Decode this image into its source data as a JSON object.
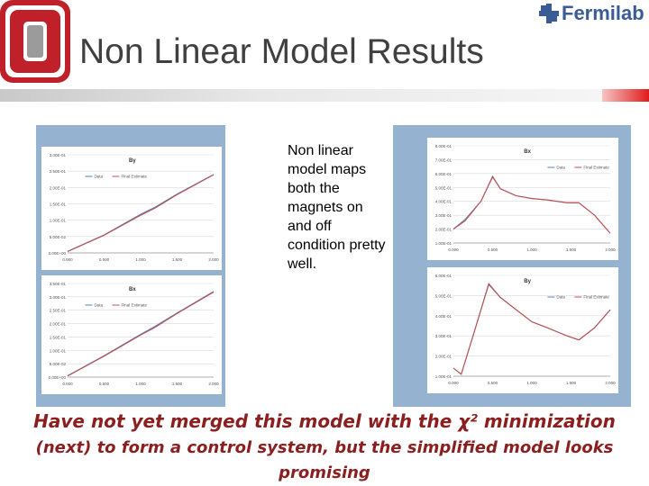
{
  "slide": {
    "title": "Non Linear Model Results",
    "brand": "Fermilab",
    "caption": "Non linear model maps both the magnets on and off condition pretty well.",
    "bottom_line1": "Have not yet merged this model with the χ² minimization",
    "bottom_line2": "(next) to form a control system, but the simplified model looks",
    "bottom_line3": "promising"
  },
  "colors": {
    "ohio_red": "#c0202a",
    "fermilab_blue": "#3a5b93",
    "panel_blue": "#95b2d0",
    "data_line": "#5b7fb8",
    "fit_line": "#c0504d",
    "accent_red": "#e11b1b",
    "bottom_text": "#8b1e1e"
  },
  "icons": {
    "logo": "ohio-state-block-o-icon",
    "brand": "fermilab-logo-icon"
  },
  "chart_data": [
    {
      "type": "line",
      "title": "By",
      "x_ticks": [
        "0.000",
        "0.500",
        "1.000",
        "1.500",
        "2.000"
      ],
      "y_ticks": [
        "0.00E+00",
        "5.00E-02",
        "1.00E-01",
        "1.50E-01",
        "2.00E-01",
        "2.50E-01",
        "3.00E-01"
      ],
      "ylim": [
        0,
        0.3
      ],
      "xlim": [
        0,
        2
      ],
      "legend_placement": "top-left",
      "series": [
        {
          "name": "Data",
          "x": [
            0,
            0.5,
            1.0,
            1.2,
            1.5,
            2.0
          ],
          "y": [
            0.005,
            0.055,
            0.118,
            0.14,
            0.18,
            0.24
          ]
        },
        {
          "name": "Final Estimate",
          "x": [
            0,
            0.5,
            1.0,
            1.2,
            1.5,
            2.0
          ],
          "y": [
            0.004,
            0.054,
            0.115,
            0.137,
            0.178,
            0.239
          ]
        }
      ]
    },
    {
      "type": "line",
      "title": "Bx",
      "x_ticks": [
        "0.000",
        "0.500",
        "1.000",
        "1.500",
        "2.000"
      ],
      "y_ticks": [
        "0.00E+00",
        "5.00E-02",
        "1.00E-01",
        "1.50E-01",
        "2.00E-01",
        "2.50E-01",
        "3.00E-01",
        "3.50E-01"
      ],
      "ylim": [
        0,
        0.35
      ],
      "xlim": [
        0,
        2
      ],
      "legend_placement": "top-left",
      "series": [
        {
          "name": "Data",
          "x": [
            0,
            0.5,
            1.0,
            1.2,
            1.5,
            2.0
          ],
          "y": [
            0.005,
            0.08,
            0.16,
            0.19,
            0.24,
            0.32
          ]
        },
        {
          "name": "Final Estimate",
          "x": [
            0,
            0.5,
            1.0,
            1.2,
            1.5,
            2.0
          ],
          "y": [
            0.004,
            0.078,
            0.157,
            0.186,
            0.238,
            0.318
          ]
        }
      ]
    },
    {
      "type": "line",
      "title": "Bx",
      "x_ticks": [
        "0.000",
        "0.500",
        "1.000",
        "1.500",
        "2.000"
      ],
      "y_ticks": [
        "1.00E-01",
        "2.00E-01",
        "3.00E-01",
        "4.00E-01",
        "5.00E-01",
        "6.00E-01",
        "7.00E-01",
        "8.00E-01"
      ],
      "ylim": [
        0.1,
        0.8
      ],
      "xlim": [
        0,
        2
      ],
      "legend_placement": "top-right",
      "series": [
        {
          "name": "Data",
          "x": [
            0,
            0.15,
            0.35,
            0.5,
            0.6,
            0.8,
            1.0,
            1.2,
            1.45,
            1.6,
            1.8,
            2.0
          ],
          "y": [
            0.2,
            0.27,
            0.4,
            0.58,
            0.49,
            0.44,
            0.42,
            0.41,
            0.39,
            0.39,
            0.3,
            0.17
          ]
        },
        {
          "name": "Final Estimate",
          "x": [
            0,
            0.15,
            0.35,
            0.5,
            0.6,
            0.8,
            1.0,
            1.2,
            1.45,
            1.6,
            1.8,
            2.0
          ],
          "y": [
            0.2,
            0.26,
            0.4,
            0.575,
            0.49,
            0.44,
            0.42,
            0.41,
            0.39,
            0.39,
            0.3,
            0.17
          ]
        }
      ]
    },
    {
      "type": "line",
      "title": "By",
      "x_ticks": [
        "0.000",
        "0.500",
        "1.000",
        "1.500",
        "2.000"
      ],
      "y_ticks": [
        "1.00E-01",
        "2.00E-01",
        "3.00E-01",
        "4.00E-01",
        "5.00E-01",
        "6.00E-01"
      ],
      "ylim": [
        0.1,
        0.6
      ],
      "xlim": [
        0,
        2
      ],
      "legend_placement": "top-right",
      "series": [
        {
          "name": "Data",
          "x": [
            0,
            0.1,
            0.25,
            0.45,
            0.6,
            0.8,
            1.0,
            1.2,
            1.45,
            1.6,
            1.8,
            2.0
          ],
          "y": [
            0.14,
            0.11,
            0.3,
            0.56,
            0.49,
            0.43,
            0.37,
            0.34,
            0.3,
            0.28,
            0.34,
            0.43
          ]
        },
        {
          "name": "Final Estimate",
          "x": [
            0,
            0.1,
            0.25,
            0.45,
            0.6,
            0.8,
            1.0,
            1.2,
            1.45,
            1.6,
            1.8,
            2.0
          ],
          "y": [
            0.14,
            0.11,
            0.3,
            0.555,
            0.49,
            0.43,
            0.37,
            0.34,
            0.3,
            0.28,
            0.34,
            0.43
          ]
        }
      ]
    }
  ]
}
